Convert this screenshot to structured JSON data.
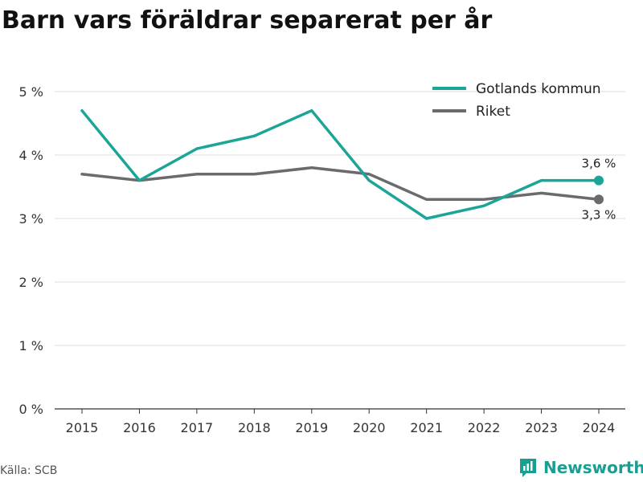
{
  "title": "Barn vars föräldrar separerat per år",
  "source": "Källa: SCB",
  "brand": {
    "name": "Newsworthy",
    "icon": "newsworthy-logo-icon"
  },
  "colors": {
    "series_1": "#1aa597",
    "series_2": "#6b6b6e",
    "grid": "#dddddd",
    "axis": "#333333"
  },
  "chart_data": {
    "type": "line",
    "x": [
      "2015",
      "2016",
      "2017",
      "2018",
      "2019",
      "2020",
      "2021",
      "2022",
      "2023",
      "2024"
    ],
    "yticks": [
      "0 %",
      "1 %",
      "2 %",
      "3 %",
      "4 %",
      "5 %"
    ],
    "ylim": [
      0,
      5
    ],
    "grid": true,
    "legend": "top-right",
    "series": [
      {
        "name": "Gotlands kommun",
        "color": "#1aa597",
        "values": [
          4.7,
          3.6,
          4.1,
          4.3,
          4.7,
          3.6,
          3.0,
          3.2,
          3.6,
          3.6
        ],
        "end_label": "3,6 %"
      },
      {
        "name": "Riket",
        "color": "#6b6b6e",
        "values": [
          3.7,
          3.6,
          3.7,
          3.7,
          3.8,
          3.7,
          3.3,
          3.3,
          3.4,
          3.3
        ],
        "end_label": "3,3 %"
      }
    ]
  }
}
